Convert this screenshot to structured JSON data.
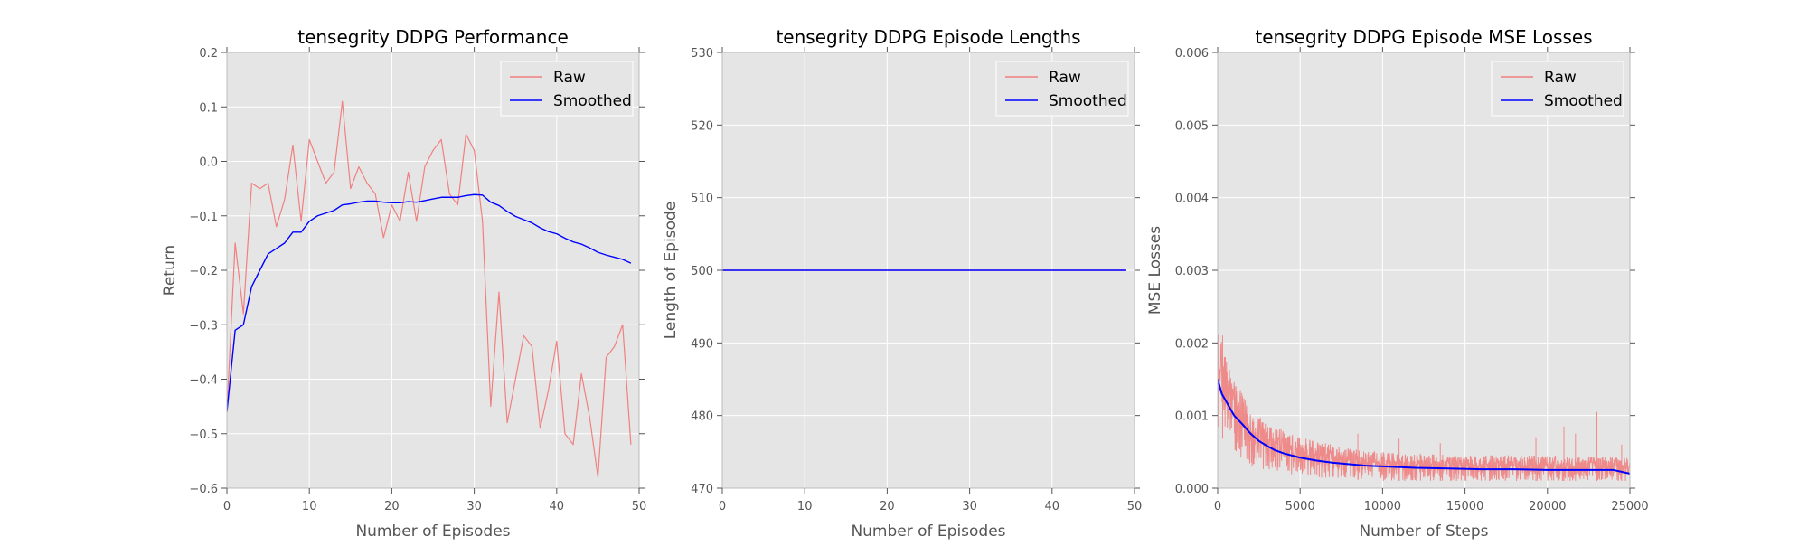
{
  "chart_data": [
    {
      "type": "line",
      "title": "tensegrity DDPG Performance",
      "xlabel": "Number of Episodes",
      "ylabel": "Return",
      "xlim": [
        0,
        50
      ],
      "ylim": [
        -0.6,
        0.2
      ],
      "xticks": [
        0,
        10,
        20,
        30,
        40,
        50
      ],
      "yticks": [
        -0.6,
        -0.5,
        -0.4,
        -0.3,
        -0.2,
        -0.1,
        0.0,
        0.1,
        0.2
      ],
      "xtick_labels": [
        "0",
        "10",
        "20",
        "30",
        "40",
        "50"
      ],
      "ytick_labels": [
        "−0.6",
        "−0.5",
        "−0.4",
        "−0.3",
        "−0.2",
        "−0.1",
        "0.0",
        "0.1",
        "0.2"
      ],
      "grid": true,
      "legend_position": "top-right",
      "x": [
        0,
        1,
        2,
        3,
        4,
        5,
        6,
        7,
        8,
        9,
        10,
        11,
        12,
        13,
        14,
        15,
        16,
        17,
        18,
        19,
        20,
        21,
        22,
        23,
        24,
        25,
        26,
        27,
        28,
        29,
        30,
        31,
        32,
        33,
        34,
        35,
        36,
        37,
        38,
        39,
        40,
        41,
        42,
        43,
        44,
        45,
        46,
        47,
        48,
        49
      ],
      "series": [
        {
          "name": "Raw",
          "color": "#f08080",
          "values": [
            -0.46,
            -0.15,
            -0.28,
            -0.04,
            -0.05,
            -0.04,
            -0.12,
            -0.07,
            0.03,
            -0.11,
            0.04,
            0.0,
            -0.04,
            -0.02,
            0.11,
            -0.05,
            -0.01,
            -0.04,
            -0.06,
            -0.14,
            -0.08,
            -0.11,
            -0.02,
            -0.11,
            -0.01,
            0.02,
            0.04,
            -0.06,
            -0.08,
            0.05,
            0.02,
            -0.11,
            -0.45,
            -0.24,
            -0.48,
            -0.4,
            -0.32,
            -0.34,
            -0.49,
            -0.42,
            -0.33,
            -0.5,
            -0.52,
            -0.39,
            -0.47,
            -0.58,
            -0.36,
            -0.34,
            -0.3,
            -0.52
          ]
        },
        {
          "name": "Smoothed",
          "color": "#0000ff",
          "values": [
            -0.46,
            -0.31,
            -0.3,
            -0.23,
            -0.2,
            -0.17,
            -0.16,
            -0.15,
            -0.13,
            -0.13,
            -0.11,
            -0.1,
            -0.095,
            -0.09,
            -0.08,
            -0.078,
            -0.075,
            -0.073,
            -0.073,
            -0.075,
            -0.076,
            -0.076,
            -0.074,
            -0.075,
            -0.072,
            -0.069,
            -0.066,
            -0.066,
            -0.066,
            -0.063,
            -0.061,
            -0.062,
            -0.075,
            -0.081,
            -0.092,
            -0.101,
            -0.107,
            -0.113,
            -0.122,
            -0.129,
            -0.133,
            -0.141,
            -0.148,
            -0.152,
            -0.159,
            -0.167,
            -0.172,
            -0.176,
            -0.18,
            -0.187
          ]
        }
      ]
    },
    {
      "type": "line",
      "title": "tensegrity DDPG Episode Lengths",
      "xlabel": "Number of Episodes",
      "ylabel": "Length of Episode",
      "xlim": [
        0,
        50
      ],
      "ylim": [
        470,
        530
      ],
      "xticks": [
        0,
        10,
        20,
        30,
        40,
        50
      ],
      "yticks": [
        470,
        480,
        490,
        500,
        510,
        520,
        530
      ],
      "xtick_labels": [
        "0",
        "10",
        "20",
        "30",
        "40",
        "50"
      ],
      "ytick_labels": [
        "470",
        "480",
        "490",
        "500",
        "510",
        "520",
        "530"
      ],
      "grid": true,
      "legend_position": "top-right",
      "x": [
        0,
        49
      ],
      "series": [
        {
          "name": "Raw",
          "color": "#f08080",
          "values": [
            500,
            500
          ]
        },
        {
          "name": "Smoothed",
          "color": "#0000ff",
          "values": [
            500,
            500
          ]
        }
      ]
    },
    {
      "type": "line",
      "title": "tensegrity DDPG Episode MSE Losses",
      "xlabel": "Number of Steps",
      "ylabel": "MSE Losses",
      "xlim": [
        0,
        25000
      ],
      "ylim": [
        0.0,
        0.006
      ],
      "xticks": [
        0,
        5000,
        10000,
        15000,
        20000,
        25000
      ],
      "yticks": [
        0.0,
        0.001,
        0.002,
        0.003,
        0.004,
        0.005,
        0.006
      ],
      "xtick_labels": [
        "0",
        "5000",
        "10000",
        "15000",
        "20000",
        "25000"
      ],
      "ytick_labels": [
        "0.000",
        "0.001",
        "0.002",
        "0.003",
        "0.004",
        "0.005",
        "0.006"
      ],
      "grid": true,
      "legend_position": "top-right",
      "raw_band": {
        "name": "Raw",
        "color": "#f08080",
        "x": [
          0,
          250,
          500,
          1000,
          1500,
          2000,
          3000,
          4000,
          5000,
          6000,
          7000,
          8000,
          9000,
          10000,
          12000,
          14000,
          16000,
          18000,
          20000,
          22000,
          24000,
          25000
        ],
        "low": [
          0.0008,
          0.0007,
          0.0006,
          0.0005,
          0.0004,
          0.0003,
          0.00025,
          0.0002,
          0.00018,
          0.00015,
          0.00013,
          0.00012,
          0.00011,
          0.0001,
          0.0001,
          0.0001,
          0.0001,
          0.0001,
          0.0001,
          0.0001,
          0.0001,
          0.0001
        ],
        "high": [
          0.0022,
          0.002,
          0.0018,
          0.0015,
          0.0013,
          0.0011,
          0.0009,
          0.0008,
          0.0007,
          0.00065,
          0.0006,
          0.00055,
          0.0005,
          0.0005,
          0.00048,
          0.00046,
          0.00045,
          0.00045,
          0.00045,
          0.00044,
          0.00044,
          0.00042
        ],
        "spikes": [
          [
            300,
            0.0021
          ],
          [
            8500,
            0.00075
          ],
          [
            11000,
            0.00068
          ],
          [
            13500,
            0.00062
          ],
          [
            19300,
            0.0007
          ],
          [
            21000,
            0.00085
          ],
          [
            21700,
            0.00075
          ],
          [
            23000,
            0.00105
          ],
          [
            24500,
            0.0006
          ]
        ]
      },
      "series": [
        {
          "name": "Smoothed",
          "color": "#0000ff",
          "x": [
            0,
            250,
            500,
            1000,
            1500,
            2000,
            2500,
            3000,
            3500,
            4000,
            5000,
            6000,
            7000,
            8000,
            9000,
            10000,
            12000,
            14000,
            16000,
            18000,
            20000,
            22000,
            24000,
            25000
          ],
          "values": [
            0.0015,
            0.0013,
            0.0012,
            0.001,
            0.00088,
            0.00075,
            0.00065,
            0.00058,
            0.00052,
            0.00048,
            0.00042,
            0.00038,
            0.00035,
            0.00033,
            0.00031,
            0.0003,
            0.00028,
            0.00027,
            0.00026,
            0.00026,
            0.00025,
            0.00025,
            0.00025,
            0.0002
          ]
        }
      ]
    }
  ]
}
